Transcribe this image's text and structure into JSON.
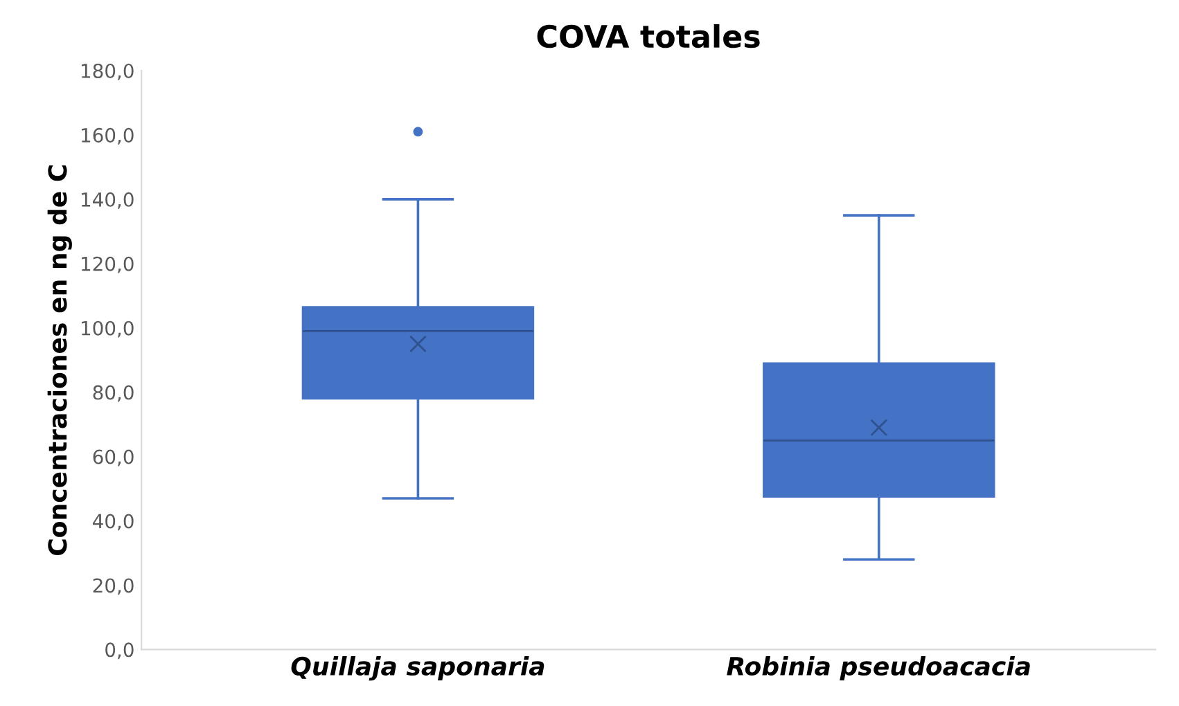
{
  "chart_data": {
    "type": "box",
    "title": "COVA totales",
    "ylabel": "Concentraciones en ng de C",
    "categories": [
      "Quillaja saponaria",
      "Robinia pseudoacacia"
    ],
    "series": [
      {
        "color": "#4472c4",
        "boxes": [
          {
            "low": 47,
            "q1": 78,
            "median": 99,
            "q3": 106.5,
            "high": 140,
            "mean": 95,
            "outliers": [
              161
            ]
          },
          {
            "low": 28,
            "q1": 47.5,
            "median": 65,
            "q3": 89,
            "high": 135,
            "mean": 69
          }
        ]
      }
    ],
    "ylim": [
      0,
      180
    ],
    "yticks": [
      {
        "value": 0,
        "label": "0,0"
      },
      {
        "value": 20,
        "label": "20,0"
      },
      {
        "value": 40,
        "label": "40,0"
      },
      {
        "value": 60,
        "label": "60,0"
      },
      {
        "value": 80,
        "label": "80,0"
      },
      {
        "value": 100,
        "label": "100,0"
      },
      {
        "value": 120,
        "label": "120,0"
      },
      {
        "value": 140,
        "label": "140,0"
      },
      {
        "value": 160,
        "label": "160,0"
      },
      {
        "value": 180,
        "label": "180,0"
      }
    ],
    "grid": false,
    "marker": "cross"
  }
}
